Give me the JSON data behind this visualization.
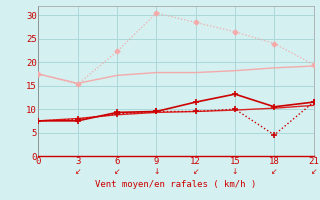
{
  "x": [
    0,
    3,
    6,
    9,
    12,
    15,
    18,
    21
  ],
  "line_rafales_max": [
    17.5,
    15.3,
    22.3,
    30.5,
    28.5,
    26.5,
    24.0,
    19.5
  ],
  "line_rafales_mean": [
    17.5,
    15.5,
    17.2,
    17.8,
    17.8,
    18.2,
    18.8,
    19.2
  ],
  "line_vent_spiky": [
    7.5,
    7.5,
    9.3,
    9.5,
    11.5,
    13.2,
    10.5,
    11.5
  ],
  "line_vent_drop": [
    7.5,
    7.8,
    9.0,
    9.5,
    9.5,
    10.0,
    4.5,
    11.5
  ],
  "line_vent_smooth": [
    7.5,
    8.0,
    8.8,
    9.3,
    9.5,
    9.8,
    10.2,
    10.8
  ],
  "color_pink_light": "#f4aaaa",
  "color_pink_med": "#e87878",
  "color_red_dark": "#cc0000",
  "color_red_med": "#dd2222",
  "bg_color": "#d4f0f0",
  "grid_color": "#aad8d8",
  "text_color": "#cc0000",
  "xlabel": "Vent moyen/en rafales ( km/h )",
  "ylim": [
    0,
    32
  ],
  "xlim": [
    0,
    21
  ],
  "yticks": [
    0,
    5,
    10,
    15,
    20,
    25,
    30
  ],
  "xticks": [
    0,
    3,
    6,
    9,
    12,
    15,
    18,
    21
  ],
  "arrow_ticks": [
    3,
    6,
    9,
    12,
    15,
    18,
    21
  ]
}
